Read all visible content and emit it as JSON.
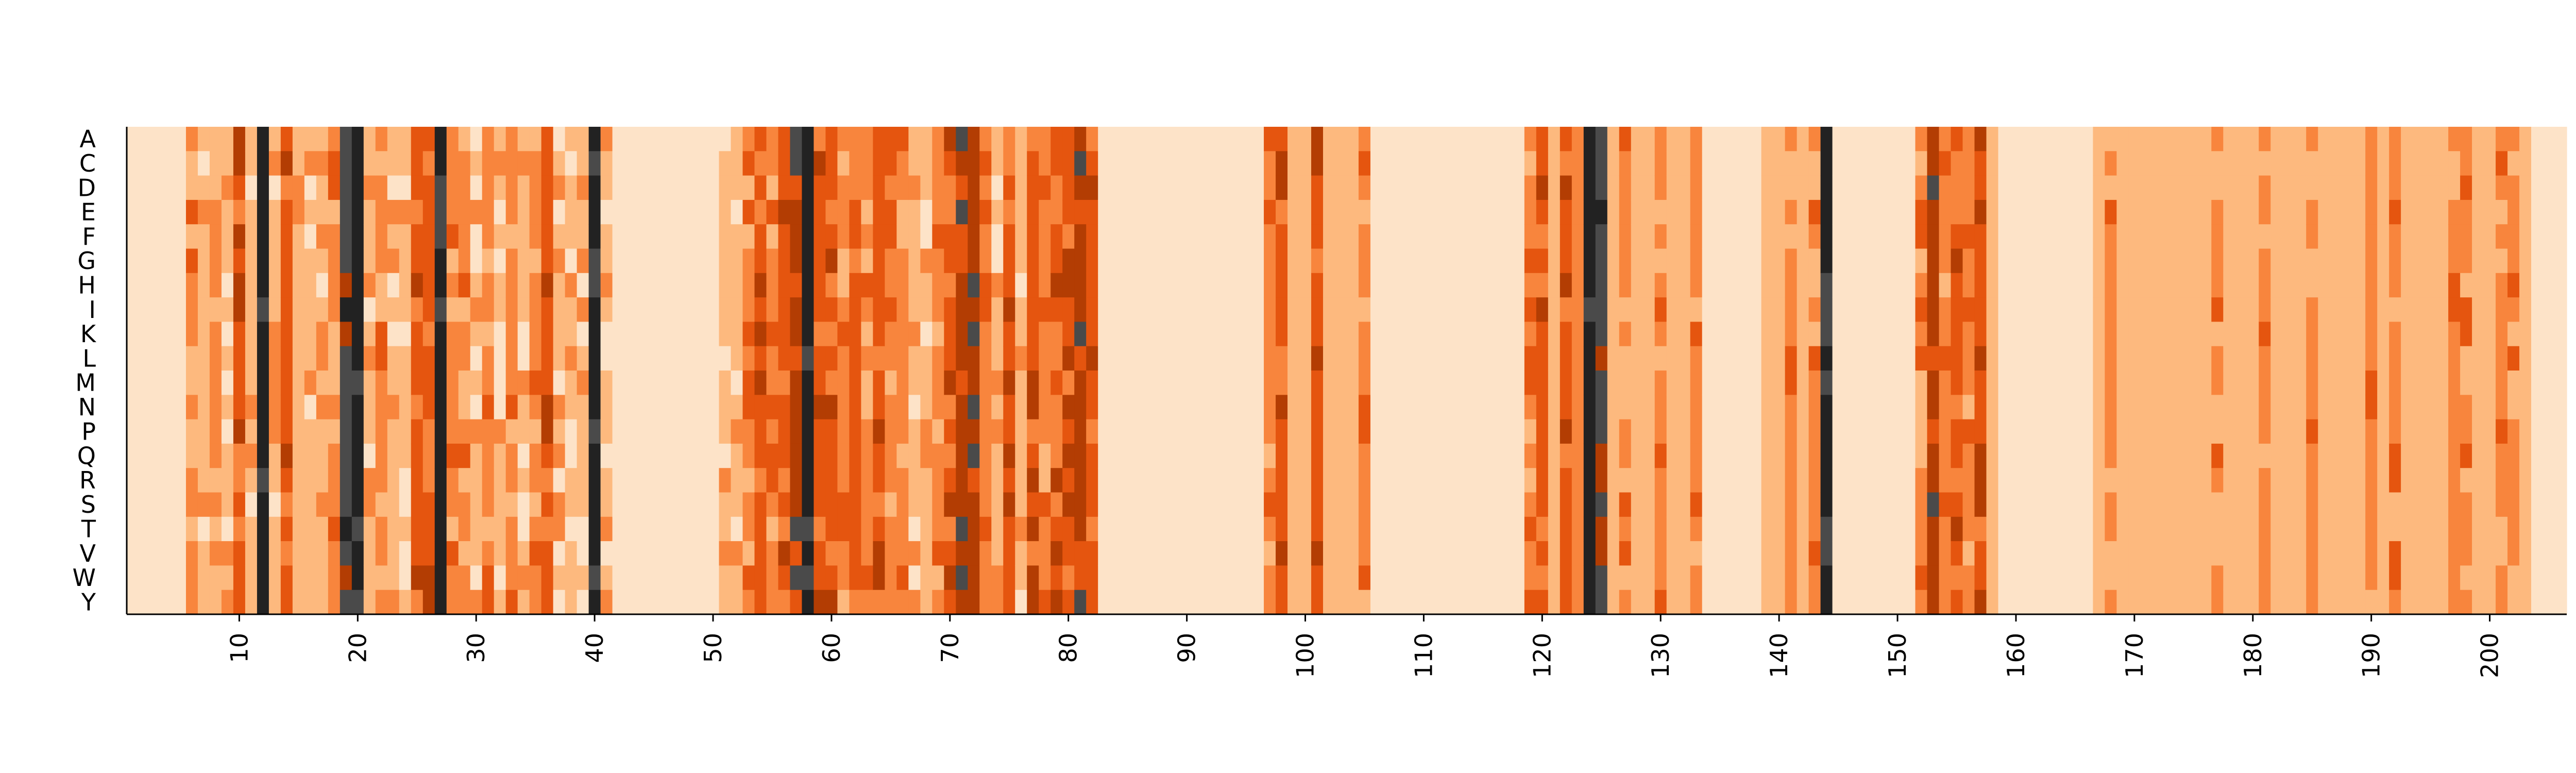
{
  "chart_data": {
    "type": "heatmap",
    "title": "",
    "xlabel": "",
    "ylabel": "",
    "x_range": [
      1,
      206
    ],
    "y_categories": [
      "A",
      "C",
      "D",
      "E",
      "F",
      "G",
      "H",
      "I",
      "K",
      "L",
      "M",
      "N",
      "P",
      "Q",
      "R",
      "S",
      "T",
      "V",
      "W",
      "Y"
    ],
    "x_ticks": [
      10,
      20,
      30,
      40,
      50,
      60,
      70,
      80,
      90,
      100,
      110,
      120,
      130,
      140,
      150,
      160,
      170,
      180,
      190,
      200
    ],
    "x_tick_labels": [
      "10",
      "20",
      "30",
      "40",
      "50",
      "60",
      "70",
      "80",
      "90",
      "100",
      "110",
      "120",
      "130",
      "140",
      "150",
      "160",
      "170",
      "180",
      "190",
      "200"
    ],
    "colormap": [
      "#ffffff",
      "#fde3c8",
      "#fdb97e",
      "#f8853d",
      "#e5550f",
      "#b33d03",
      "#4a4a4a",
      "#222222"
    ],
    "value_range": [
      0,
      7
    ],
    "baseline_value": 1,
    "default_column_level": 1,
    "column_levels": {
      "6": 3,
      "7": 2,
      "8": 3,
      "9": 2,
      "10": 4,
      "11": 2,
      "12": 7,
      "13": 2,
      "14": 4,
      "15": 2,
      "16": 2,
      "17": 2,
      "18": 3,
      "19": 6,
      "20": 7,
      "21": 2,
      "22": 3,
      "23": 2,
      "24": 2,
      "25": 4,
      "26": 4,
      "27": 7,
      "28": 3,
      "29": 3,
      "30": 2,
      "31": 3,
      "32": 2,
      "33": 3,
      "34": 2,
      "35": 3,
      "36": 4,
      "37": 2,
      "38": 2,
      "39": 2,
      "40": 7,
      "41": 2,
      "51": 2,
      "52": 2,
      "53": 3,
      "54": 4,
      "55": 3,
      "56": 4,
      "57": 5,
      "58": 7,
      "59": 4,
      "60": 4,
      "61": 3,
      "62": 4,
      "63": 3,
      "64": 4,
      "65": 3,
      "66": 3,
      "67": 2,
      "68": 2,
      "69": 3,
      "70": 4,
      "71": 5,
      "72": 5,
      "73": 3,
      "74": 2,
      "75": 4,
      "76": 2,
      "77": 4,
      "78": 3,
      "79": 4,
      "80": 4,
      "81": 5,
      "82": 4,
      "97": 3,
      "98": 4,
      "99": 2,
      "100": 2,
      "101": 4,
      "102": 2,
      "103": 2,
      "104": 2,
      "105": 3,
      "119": 3,
      "120": 4,
      "121": 2,
      "122": 4,
      "123": 3,
      "124": 7,
      "125": 6,
      "126": 2,
      "127": 3,
      "128": 2,
      "129": 2,
      "130": 3,
      "131": 2,
      "132": 2,
      "133": 3,
      "139": 2,
      "140": 2,
      "141": 3,
      "142": 2,
      "143": 3,
      "144": 7,
      "152": 3,
      "153": 5,
      "154": 3,
      "155": 4,
      "156": 3,
      "157": 4,
      "158": 2,
      "167": 2,
      "168": 3,
      "169": 2,
      "170": 2,
      "171": 2,
      "172": 2,
      "173": 2,
      "174": 2,
      "175": 2,
      "176": 2,
      "177": 3,
      "178": 2,
      "179": 2,
      "180": 2,
      "181": 3,
      "182": 2,
      "183": 2,
      "184": 2,
      "185": 3,
      "186": 2,
      "187": 2,
      "188": 2,
      "189": 2,
      "190": 3,
      "191": 2,
      "192": 3,
      "193": 2,
      "194": 2,
      "195": 2,
      "196": 2,
      "197": 3,
      "198": 3,
      "199": 2,
      "200": 2,
      "201": 3,
      "202": 3,
      "203": 2
    },
    "column_variation": {
      "6": 1,
      "7": 1,
      "8": 1,
      "9": 1,
      "10": 1,
      "11": 1,
      "12": 1,
      "13": 1,
      "14": 1,
      "15": 1,
      "16": 1,
      "17": 1,
      "18": 1,
      "19": 1,
      "20": 1,
      "21": 1,
      "22": 1,
      "23": 1,
      "24": 1,
      "25": 1,
      "26": 1,
      "27": 1,
      "28": 1,
      "29": 1,
      "30": 1,
      "31": 1,
      "32": 1,
      "33": 1,
      "34": 1,
      "35": 1,
      "36": 1,
      "37": 1,
      "38": 1,
      "39": 1,
      "40": 1,
      "41": 1,
      "51": 1,
      "52": 1,
      "53": 1,
      "54": 1,
      "55": 1,
      "56": 1,
      "57": 1,
      "58": 1,
      "59": 1,
      "60": 1,
      "61": 1,
      "62": 1,
      "63": 1,
      "64": 1,
      "65": 1,
      "66": 1,
      "67": 1,
      "68": 1,
      "69": 1,
      "70": 1,
      "71": 1,
      "72": 1,
      "73": 1,
      "74": 1,
      "75": 1,
      "76": 1,
      "77": 1,
      "78": 1,
      "79": 1,
      "80": 1,
      "81": 1,
      "82": 1,
      "97": 1,
      "98": 1,
      "101": 1,
      "105": 1,
      "119": 1,
      "120": 1,
      "122": 1,
      "124": 1,
      "125": 1,
      "127": 1,
      "130": 1,
      "133": 1,
      "141": 1,
      "143": 1,
      "144": 1,
      "152": 1,
      "153": 1,
      "154": 1,
      "155": 1,
      "156": 1,
      "157": 1,
      "168": 1,
      "177": 1,
      "181": 1,
      "185": 1,
      "190": 1,
      "192": 1,
      "197": 1,
      "198": 1,
      "201": 1,
      "202": 1
    },
    "grid": false,
    "legend": "none"
  }
}
